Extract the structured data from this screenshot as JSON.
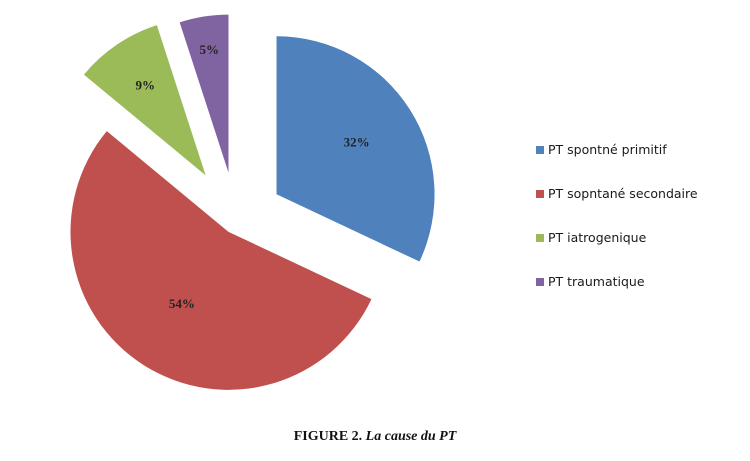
{
  "chart_data": {
    "type": "pie",
    "categories": [
      "PT spontné primitif",
      "PT sopntané secondaire",
      "PT iatrogenique",
      "PT traumatique"
    ],
    "values": [
      32,
      54,
      9,
      5
    ],
    "labels": [
      "32%",
      "54%",
      "9%",
      "5%"
    ],
    "colors": [
      "#4f81bd",
      "#c0504d",
      "#9bbb59",
      "#8064a2"
    ],
    "exploded": true,
    "legend_position": "right"
  },
  "caption": {
    "label": "FIGURE 2.",
    "text": "La cause du PT"
  }
}
